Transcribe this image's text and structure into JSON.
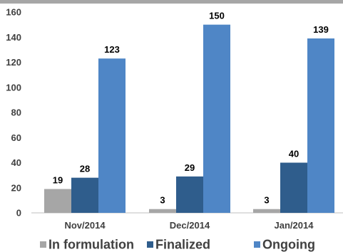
{
  "chart_data": {
    "type": "bar",
    "categories": [
      "Nov/2014",
      "Dec/2014",
      "Jan/2014"
    ],
    "series": [
      {
        "name": "In formulation",
        "values": [
          19,
          3,
          3
        ],
        "color": "#A6A6A6"
      },
      {
        "name": "Finalized",
        "values": [
          28,
          29,
          40
        ],
        "color": "#2F5D8C"
      },
      {
        "name": "Ongoing",
        "values": [
          123,
          150,
          139
        ],
        "color": "#4F86C6"
      }
    ],
    "ylim": [
      0,
      160
    ],
    "yticks": [
      0,
      20,
      40,
      60,
      80,
      100,
      120,
      140,
      160
    ],
    "grid": false,
    "legend": "bottom",
    "title": "",
    "xlabel": "",
    "ylabel": ""
  }
}
